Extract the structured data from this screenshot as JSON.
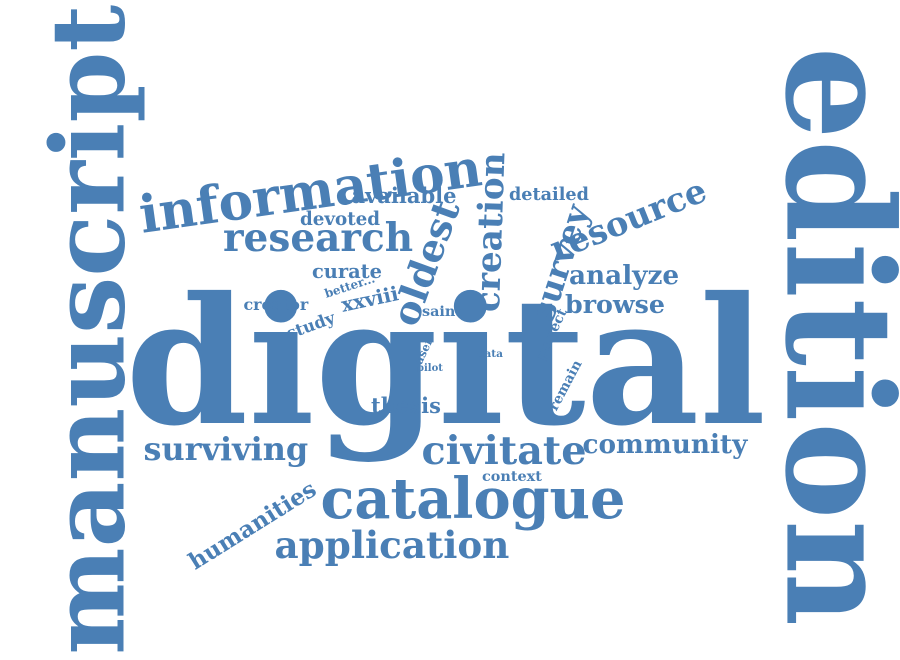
{
  "color": "#4a7fb5",
  "words": [
    "digital",
    "edition",
    "manuscript",
    "information",
    "research",
    "catalogue",
    "application",
    "civitate",
    "oldest",
    "creation",
    "resource",
    "survey",
    "analyze",
    "browse",
    "community",
    "surviving",
    "humanities",
    "thesis",
    "available",
    "detailed",
    "devoted",
    "curate",
    "creator",
    "better...",
    "xxviii",
    "study",
    "saint",
    "user",
    "pilot",
    "data",
    "project",
    "remain",
    "context"
  ]
}
